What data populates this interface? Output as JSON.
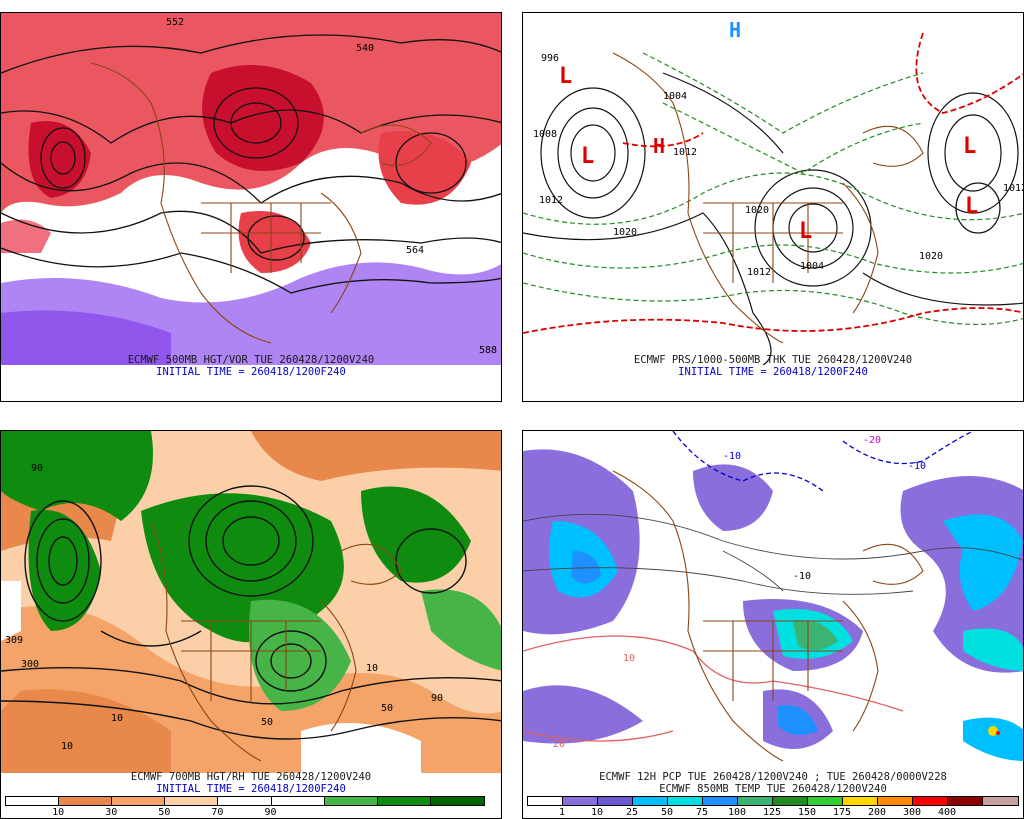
{
  "panels": [
    {
      "id": "tl",
      "caption_line1": "ECMWF 500MB HGT/VOR TUE 260428/1200V240",
      "caption_line2": "INITIAL TIME = 260418/1200F240",
      "contour_labels": [
        "552",
        "540",
        "564",
        "588"
      ]
    },
    {
      "id": "tr",
      "caption_line1": "ECMWF PRS/1000-500MB THK TUE 260428/1200V240",
      "caption_line2": "INITIAL TIME = 260418/1200F240",
      "contour_labels": [
        "996",
        "1008",
        "1012",
        "1004",
        "1020",
        "1012",
        "1020",
        "1012",
        "1004",
        "1020",
        "1012"
      ],
      "symbols": [
        "L",
        "L",
        "L",
        "H",
        "L",
        "L",
        "H"
      ]
    },
    {
      "id": "bl",
      "caption_line1": "ECMWF 700MB HGT/RH TUE 260428/1200V240",
      "caption_line2": "INITIAL TIME = 260418/1200F240",
      "contour_labels": [
        "90",
        "10",
        "309",
        "300",
        "50",
        "10",
        "50",
        "90",
        "10"
      ],
      "colorbar": {
        "labels": [
          "10",
          "30",
          "50",
          "70",
          "90"
        ],
        "colors": [
          "#ffffff",
          "#e8884a",
          "#f4a468",
          "#fbd0a8",
          "#ffffff",
          "#ffffff",
          "#46b446",
          "#0f8c0f",
          "#006400"
        ]
      }
    },
    {
      "id": "br",
      "caption_line1": "ECMWF 12H PCP TUE 260428/1200V240 ; TUE 260428/0000V228",
      "caption_line2": "ECMWF 850MB TEMP TUE 260428/1200V240",
      "contour_labels": [
        "-10",
        "-20",
        "-10",
        "-10",
        "10",
        "20"
      ],
      "colorbar": {
        "labels": [
          "1",
          "10",
          "25",
          "50",
          "75",
          "100",
          "125",
          "150",
          "175",
          "200",
          "300",
          "400"
        ],
        "colors": [
          "#ffffff",
          "#8a6fdc",
          "#6a5acd",
          "#00bfff",
          "#00e0e0",
          "#1e90ff",
          "#3cb371",
          "#228b22",
          "#32cd32",
          "#ffd700",
          "#ff8c00",
          "#ff0000",
          "#8b0000",
          "#c8a0a0"
        ]
      }
    }
  ]
}
